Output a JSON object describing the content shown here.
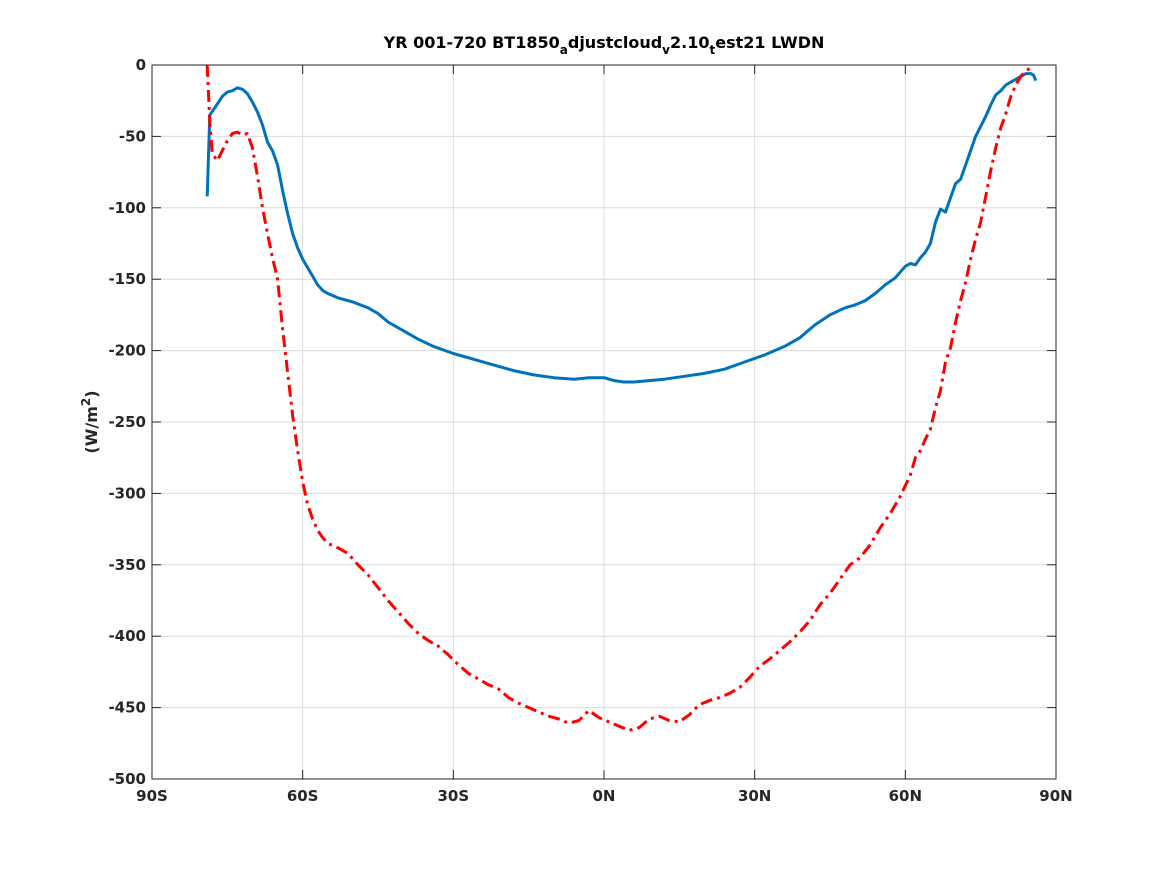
{
  "chart_data": {
    "type": "line",
    "title": {
      "base1": "YR 001-720 BT1850",
      "sub1": "a",
      "base2": "djustcloud",
      "sub2": "v",
      "base3": "2.10",
      "sub3": "t",
      "base4": "est21 LWDN"
    },
    "xlabel": "",
    "ylabel": {
      "prefix": "(W/m",
      "sup": "2",
      "suffix": ")"
    },
    "xlim": [
      -90,
      90
    ],
    "ylim": [
      -500,
      0
    ],
    "xticks": [
      -90,
      -60,
      -30,
      0,
      30,
      60,
      90
    ],
    "xtick_labels": [
      "90S",
      "60S",
      "30S",
      "0N",
      "30N",
      "60N",
      "90N"
    ],
    "yticks": [
      -500,
      -450,
      -400,
      -350,
      -300,
      -250,
      -200,
      -150,
      -100,
      -50,
      0
    ],
    "ytick_labels": [
      "-500",
      "-450",
      "-400",
      "-350",
      "-300",
      "-250",
      "-200",
      "-150",
      "-100",
      "-50",
      "0"
    ],
    "grid": true,
    "series": [
      {
        "color": "#0072bd",
        "style": "solid",
        "points": [
          [
            -79,
            -92
          ],
          [
            -78.5,
            -35
          ],
          [
            -77.5,
            -30
          ],
          [
            -76,
            -22
          ],
          [
            -75,
            -19
          ],
          [
            -74,
            -18
          ],
          [
            -73,
            -16
          ],
          [
            -72,
            -17
          ],
          [
            -71,
            -20
          ],
          [
            -70,
            -26
          ],
          [
            -69,
            -33
          ],
          [
            -68,
            -42
          ],
          [
            -67,
            -54
          ],
          [
            -66,
            -60
          ],
          [
            -65,
            -70
          ],
          [
            -64,
            -88
          ],
          [
            -63,
            -104
          ],
          [
            -62,
            -118
          ],
          [
            -61,
            -128
          ],
          [
            -60,
            -136
          ],
          [
            -59,
            -142
          ],
          [
            -58,
            -148
          ],
          [
            -57,
            -154
          ],
          [
            -56,
            -158
          ],
          [
            -55,
            -160
          ],
          [
            -53,
            -163
          ],
          [
            -50,
            -166
          ],
          [
            -47,
            -170
          ],
          [
            -45,
            -174
          ],
          [
            -43,
            -180
          ],
          [
            -40,
            -186
          ],
          [
            -37,
            -192
          ],
          [
            -34,
            -197
          ],
          [
            -30,
            -202
          ],
          [
            -26,
            -206
          ],
          [
            -22,
            -210
          ],
          [
            -18,
            -214
          ],
          [
            -14,
            -217
          ],
          [
            -10,
            -219
          ],
          [
            -6,
            -220
          ],
          [
            -3,
            -219
          ],
          [
            0,
            -219
          ],
          [
            2,
            -221
          ],
          [
            4,
            -222
          ],
          [
            6,
            -222
          ],
          [
            9,
            -221
          ],
          [
            12,
            -220
          ],
          [
            16,
            -218
          ],
          [
            20,
            -216
          ],
          [
            24,
            -213
          ],
          [
            28,
            -208
          ],
          [
            32,
            -203
          ],
          [
            36,
            -197
          ],
          [
            39,
            -191
          ],
          [
            42,
            -182
          ],
          [
            45,
            -175
          ],
          [
            48,
            -170
          ],
          [
            50,
            -168
          ],
          [
            52,
            -165
          ],
          [
            54,
            -160
          ],
          [
            56,
            -154
          ],
          [
            58,
            -149
          ],
          [
            60,
            -141
          ],
          [
            61,
            -139
          ],
          [
            62,
            -140
          ],
          [
            63,
            -135
          ],
          [
            64,
            -131
          ],
          [
            65,
            -125
          ],
          [
            66,
            -110
          ],
          [
            67,
            -101
          ],
          [
            68,
            -103
          ],
          [
            69,
            -93
          ],
          [
            70,
            -83
          ],
          [
            71,
            -80
          ],
          [
            72,
            -70
          ],
          [
            73,
            -60
          ],
          [
            74,
            -50
          ],
          [
            75,
            -43
          ],
          [
            76,
            -36
          ],
          [
            77,
            -28
          ],
          [
            78,
            -21
          ],
          [
            79,
            -18
          ],
          [
            80,
            -14
          ],
          [
            81,
            -12
          ],
          [
            82,
            -10
          ],
          [
            83,
            -8
          ],
          [
            84,
            -6
          ],
          [
            85,
            -6
          ],
          [
            85.5,
            -7
          ],
          [
            86,
            -11
          ]
        ]
      },
      {
        "color": "#ff0000",
        "style": "dashdot",
        "points": [
          [
            -79,
            0
          ],
          [
            -78.5,
            -40
          ],
          [
            -78,
            -62
          ],
          [
            -77,
            -67
          ],
          [
            -76,
            -60
          ],
          [
            -75,
            -53
          ],
          [
            -74,
            -48
          ],
          [
            -73,
            -47
          ],
          [
            -72,
            -49
          ],
          [
            -71,
            -48
          ],
          [
            -70,
            -58
          ],
          [
            -69,
            -78
          ],
          [
            -68,
            -100
          ],
          [
            -67,
            -118
          ],
          [
            -66,
            -135
          ],
          [
            -65,
            -150
          ],
          [
            -64,
            -185
          ],
          [
            -63,
            -215
          ],
          [
            -62,
            -245
          ],
          [
            -61,
            -270
          ],
          [
            -60,
            -292
          ],
          [
            -59,
            -308
          ],
          [
            -58,
            -318
          ],
          [
            -57,
            -326
          ],
          [
            -56,
            -331
          ],
          [
            -55,
            -335
          ],
          [
            -53,
            -338
          ],
          [
            -51,
            -342
          ],
          [
            -49,
            -350
          ],
          [
            -47,
            -357
          ],
          [
            -45,
            -366
          ],
          [
            -43,
            -375
          ],
          [
            -41,
            -383
          ],
          [
            -39,
            -391
          ],
          [
            -37,
            -398
          ],
          [
            -35,
            -403
          ],
          [
            -33,
            -407
          ],
          [
            -31,
            -413
          ],
          [
            -29,
            -420
          ],
          [
            -27,
            -426
          ],
          [
            -25,
            -430
          ],
          [
            -23,
            -434
          ],
          [
            -21,
            -437
          ],
          [
            -19,
            -443
          ],
          [
            -17,
            -447
          ],
          [
            -15,
            -450
          ],
          [
            -13,
            -453
          ],
          [
            -11,
            -456
          ],
          [
            -9,
            -458
          ],
          [
            -7,
            -461
          ],
          [
            -5,
            -459
          ],
          [
            -3,
            -452
          ],
          [
            -1,
            -457
          ],
          [
            1,
            -460
          ],
          [
            3,
            -463
          ],
          [
            5,
            -466
          ],
          [
            7,
            -464
          ],
          [
            9,
            -458
          ],
          [
            11,
            -456
          ],
          [
            13,
            -459
          ],
          [
            15,
            -460
          ],
          [
            17,
            -455
          ],
          [
            19,
            -448
          ],
          [
            21,
            -445
          ],
          [
            23,
            -443
          ],
          [
            25,
            -440
          ],
          [
            27,
            -436
          ],
          [
            29,
            -429
          ],
          [
            31,
            -421
          ],
          [
            33,
            -416
          ],
          [
            35,
            -410
          ],
          [
            37,
            -404
          ],
          [
            39,
            -397
          ],
          [
            41,
            -389
          ],
          [
            43,
            -378
          ],
          [
            45,
            -370
          ],
          [
            47,
            -360
          ],
          [
            49,
            -350
          ],
          [
            51,
            -345
          ],
          [
            53,
            -336
          ],
          [
            55,
            -324
          ],
          [
            57,
            -314
          ],
          [
            59,
            -302
          ],
          [
            61,
            -287
          ],
          [
            62,
            -275
          ],
          [
            63,
            -270
          ],
          [
            64,
            -262
          ],
          [
            65,
            -255
          ],
          [
            66,
            -240
          ],
          [
            67,
            -228
          ],
          [
            68,
            -208
          ],
          [
            69,
            -198
          ],
          [
            70,
            -180
          ],
          [
            71,
            -165
          ],
          [
            72,
            -152
          ],
          [
            73,
            -136
          ],
          [
            74,
            -122
          ],
          [
            75,
            -110
          ],
          [
            76,
            -92
          ],
          [
            77,
            -74
          ],
          [
            78,
            -58
          ],
          [
            79,
            -44
          ],
          [
            80,
            -34
          ],
          [
            81,
            -22
          ],
          [
            82,
            -14
          ],
          [
            83,
            -8
          ],
          [
            84,
            -4
          ],
          [
            85,
            -2
          ]
        ]
      }
    ]
  }
}
